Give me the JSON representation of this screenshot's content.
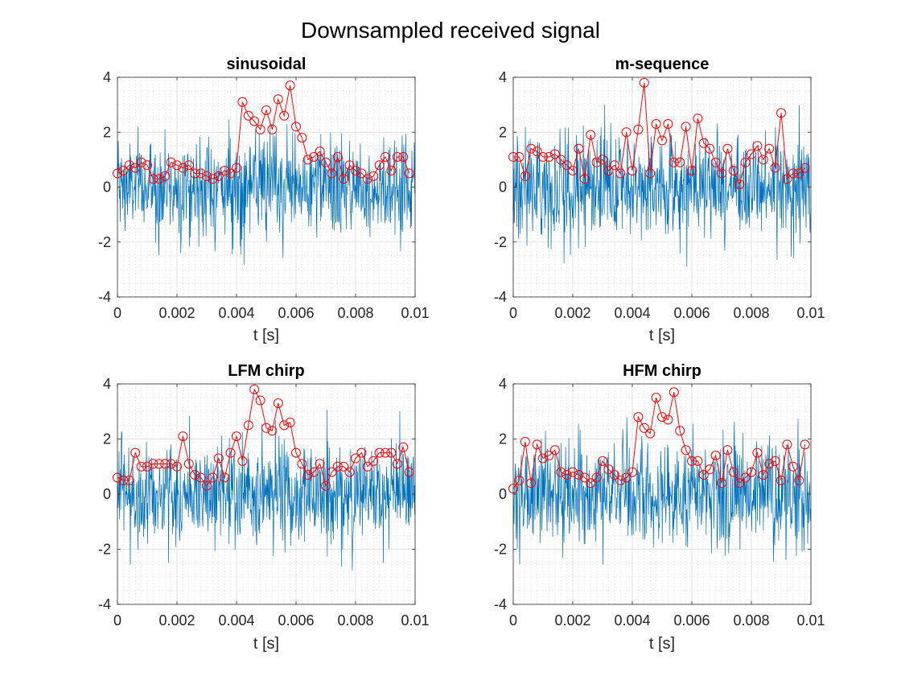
{
  "figure": {
    "title": "Downsampled received signal"
  },
  "colors": {
    "signal": "#0072BD",
    "envelope": "#FF0000",
    "axis": "#262626",
    "grid": "#DFDFDF"
  },
  "chart_data": [
    {
      "type": "line",
      "title": "sinusoidal",
      "xlabel": "t [s]",
      "ylabel": "",
      "xlim": [
        0,
        0.01
      ],
      "ylim": [
        -4,
        4
      ],
      "xticks": [
        "0",
        "0.002",
        "0.004",
        "0.008",
        "0.01"
      ],
      "xtick_values": [
        0,
        0.002,
        0.004,
        0.008,
        0.01
      ],
      "xticks_all": [
        "0",
        "0.002",
        "0.004",
        "0.006",
        "0.008",
        "0.01"
      ],
      "yticks": [
        "-4",
        "-2",
        "0",
        "2",
        "4"
      ],
      "grid": true,
      "series": [
        {
          "label": "received-signal",
          "kind": "noise",
          "std": 0.9,
          "clip": [
            -3.0,
            3.6
          ]
        },
        {
          "label": "envelope-peaks",
          "kind": "markers",
          "x": [
            0.0,
            0.0002,
            0.0004,
            0.0006,
            0.0008,
            0.001,
            0.0012,
            0.0014,
            0.0016,
            0.0018,
            0.002,
            0.0022,
            0.0024,
            0.0026,
            0.0028,
            0.003,
            0.0032,
            0.0034,
            0.0036,
            0.0038,
            0.004,
            0.0042,
            0.0044,
            0.0046,
            0.0048,
            0.005,
            0.0052,
            0.0054,
            0.0056,
            0.0058,
            0.006,
            0.0062,
            0.0064,
            0.0066,
            0.0068,
            0.007,
            0.0072,
            0.0074,
            0.0076,
            0.0078,
            0.008,
            0.0082,
            0.0084,
            0.0086,
            0.0088,
            0.009,
            0.0092,
            0.0094,
            0.0096,
            0.0098
          ],
          "y": [
            0.5,
            0.6,
            0.8,
            0.7,
            0.9,
            0.8,
            0.3,
            0.3,
            0.4,
            0.9,
            0.8,
            0.7,
            0.8,
            0.5,
            0.5,
            0.4,
            0.3,
            0.4,
            0.6,
            0.5,
            0.7,
            3.1,
            2.6,
            2.4,
            2.1,
            2.8,
            2.1,
            3.2,
            2.6,
            3.7,
            2.2,
            1.8,
            1.0,
            1.1,
            1.3,
            0.9,
            0.5,
            1.1,
            0.3,
            0.8,
            0.6,
            0.5,
            0.3,
            0.4,
            0.8,
            1.1,
            0.6,
            1.1,
            1.1,
            0.5
          ]
        }
      ]
    },
    {
      "type": "line",
      "title": "m-sequence",
      "xlabel": "t [s]",
      "ylabel": "",
      "xlim": [
        0,
        0.01
      ],
      "ylim": [
        -4,
        4
      ],
      "xticks": [
        "0",
        "0.002",
        "0.004",
        "0.006",
        "0.008",
        "0.01"
      ],
      "xtick_values": [
        0,
        0.002,
        0.004,
        0.006,
        0.008,
        0.01
      ],
      "yticks": [
        "-4",
        "-2",
        "0",
        "2",
        "4"
      ],
      "grid": true,
      "series": [
        {
          "label": "received-signal",
          "kind": "noise",
          "std": 0.95,
          "clip": [
            -3.7,
            3.5
          ]
        },
        {
          "label": "envelope-peaks",
          "kind": "markers",
          "x": [
            0.0,
            0.0002,
            0.0004,
            0.0006,
            0.0008,
            0.001,
            0.0012,
            0.0014,
            0.0016,
            0.0018,
            0.002,
            0.0022,
            0.0024,
            0.0026,
            0.0028,
            0.003,
            0.0032,
            0.0034,
            0.0036,
            0.0038,
            0.004,
            0.0042,
            0.0044,
            0.0046,
            0.0048,
            0.005,
            0.0052,
            0.0054,
            0.0056,
            0.0058,
            0.006,
            0.0062,
            0.0064,
            0.0066,
            0.0068,
            0.007,
            0.0072,
            0.0074,
            0.0076,
            0.0078,
            0.008,
            0.0082,
            0.0084,
            0.0086,
            0.0088,
            0.009,
            0.0092,
            0.0094,
            0.0096,
            0.0098
          ],
          "y": [
            1.1,
            1.1,
            0.4,
            1.4,
            1.3,
            1.1,
            1.1,
            1.2,
            1.0,
            0.8,
            0.6,
            1.4,
            0.3,
            1.9,
            0.9,
            1.0,
            0.6,
            0.8,
            0.5,
            2.0,
            0.6,
            2.1,
            3.8,
            0.5,
            2.3,
            1.7,
            2.3,
            0.9,
            0.9,
            2.2,
            0.6,
            2.5,
            1.6,
            1.4,
            0.9,
            0.5,
            1.4,
            0.6,
            0.1,
            0.9,
            1.2,
            1.5,
            1.0,
            1.4,
            0.7,
            2.7,
            0.3,
            0.5,
            0.5,
            0.7
          ]
        }
      ]
    },
    {
      "type": "line",
      "title": "LFM chirp",
      "xlabel": "t [s]",
      "ylabel": "",
      "xlim": [
        0,
        0.01
      ],
      "ylim": [
        -4,
        4
      ],
      "xticks": [
        "0",
        "0.002",
        "0.004",
        "0.006",
        "0.008",
        "0.01"
      ],
      "xtick_values": [
        0,
        0.002,
        0.004,
        0.006,
        0.008,
        0.01
      ],
      "yticks": [
        "-4",
        "-2",
        "0",
        "2",
        "4"
      ],
      "grid": true,
      "series": [
        {
          "label": "received-signal",
          "kind": "noise",
          "std": 0.95,
          "clip": [
            -3.8,
            3.4
          ]
        },
        {
          "label": "envelope-peaks",
          "kind": "markers",
          "x": [
            0.0,
            0.0002,
            0.0004,
            0.0006,
            0.0008,
            0.001,
            0.0012,
            0.0014,
            0.0016,
            0.0018,
            0.002,
            0.0022,
            0.0024,
            0.0026,
            0.0028,
            0.003,
            0.0032,
            0.0034,
            0.0036,
            0.0038,
            0.004,
            0.0042,
            0.0044,
            0.0046,
            0.0048,
            0.005,
            0.0052,
            0.0054,
            0.0056,
            0.0058,
            0.006,
            0.0062,
            0.0064,
            0.0066,
            0.0068,
            0.007,
            0.0072,
            0.0074,
            0.0076,
            0.0078,
            0.008,
            0.0082,
            0.0084,
            0.0086,
            0.0088,
            0.009,
            0.0092,
            0.0094,
            0.0096,
            0.0098
          ],
          "y": [
            0.6,
            0.5,
            0.5,
            1.5,
            1.0,
            1.0,
            1.1,
            1.1,
            1.1,
            1.1,
            1.0,
            2.1,
            1.1,
            0.7,
            0.6,
            0.3,
            0.6,
            1.3,
            0.6,
            1.5,
            2.1,
            1.2,
            2.5,
            3.8,
            3.4,
            2.4,
            2.3,
            3.3,
            2.5,
            2.6,
            1.5,
            1.1,
            0.7,
            0.8,
            1.1,
            0.3,
            0.8,
            1.0,
            1.0,
            0.8,
            1.3,
            1.5,
            1.0,
            1.2,
            1.5,
            1.5,
            1.5,
            1.1,
            1.7,
            0.8
          ]
        }
      ]
    },
    {
      "type": "line",
      "title": "HFM chirp",
      "xlabel": "t [s]",
      "ylabel": "",
      "xlim": [
        0,
        0.01
      ],
      "ylim": [
        -4,
        4
      ],
      "xticks": [
        "0",
        "0.002",
        "0.004",
        "0.006",
        "0.008",
        "0.01"
      ],
      "xtick_values": [
        0,
        0.002,
        0.004,
        0.006,
        0.008,
        0.01
      ],
      "yticks": [
        "-4",
        "-2",
        "0",
        "2",
        "4"
      ],
      "grid": true,
      "series": [
        {
          "label": "received-signal",
          "kind": "noise",
          "std": 0.95,
          "clip": [
            -3.8,
            3.4
          ]
        },
        {
          "label": "envelope-peaks",
          "kind": "markers",
          "x": [
            0.0,
            0.0002,
            0.0004,
            0.0006,
            0.0008,
            0.001,
            0.0012,
            0.0014,
            0.0016,
            0.0018,
            0.002,
            0.0022,
            0.0024,
            0.0026,
            0.0028,
            0.003,
            0.0032,
            0.0034,
            0.0036,
            0.0038,
            0.004,
            0.0042,
            0.0044,
            0.0046,
            0.0048,
            0.005,
            0.0052,
            0.0054,
            0.0056,
            0.0058,
            0.006,
            0.0062,
            0.0064,
            0.0066,
            0.0068,
            0.007,
            0.0072,
            0.0074,
            0.0076,
            0.0078,
            0.008,
            0.0082,
            0.0084,
            0.0086,
            0.0088,
            0.009,
            0.0092,
            0.0094,
            0.0096,
            0.0098
          ],
          "y": [
            0.2,
            0.5,
            1.9,
            0.4,
            1.8,
            1.3,
            1.4,
            1.6,
            0.8,
            0.7,
            0.8,
            0.7,
            0.6,
            0.4,
            0.6,
            1.2,
            0.9,
            0.7,
            0.5,
            0.6,
            0.8,
            2.8,
            2.4,
            2.2,
            3.5,
            2.8,
            2.7,
            3.7,
            2.3,
            1.6,
            1.2,
            1.2,
            0.7,
            0.9,
            1.4,
            0.4,
            1.6,
            0.8,
            0.4,
            0.6,
            0.8,
            1.5,
            0.7,
            1.1,
            1.2,
            0.5,
            1.8,
            1.0,
            0.5,
            1.8
          ]
        }
      ]
    }
  ]
}
